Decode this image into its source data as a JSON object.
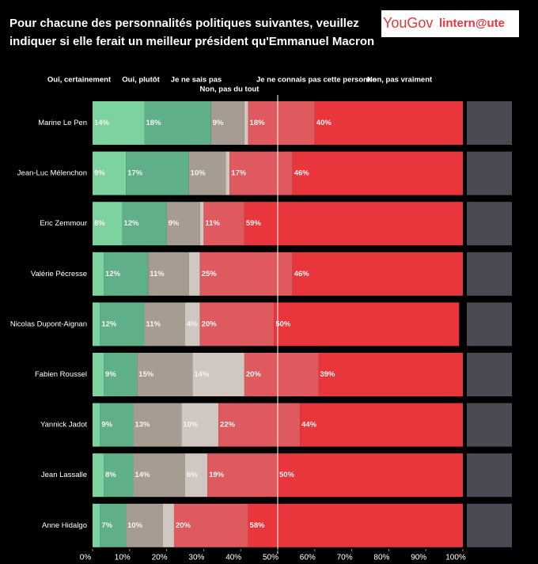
{
  "logos": [
    "YouGov",
    "lintern@ute"
  ],
  "chart_data": {
    "type": "stacked-bar-horizontal",
    "title": "Pour chacune des personnalités politiques suivantes, veuillez indiquer si elle ferait un meilleur président qu'Emmanuel Macron",
    "categories": [
      "Marine Le Pen",
      "Jean-Luc Mélenchon",
      "Eric Zemmour",
      "Valérie Pécresse",
      "Nicolas Dupont-Aignan",
      "Fabien Roussel",
      "Yannick Jadot",
      "Jean Lassalle",
      "Anne Hidalgo"
    ],
    "series": [
      {
        "name": "Oui, certainement",
        "color": "#7dd3a0",
        "values": [
          14,
          9,
          8,
          3,
          2,
          3,
          2,
          3,
          2
        ],
        "value_labels": [
          "14%",
          "9%",
          "8%",
          null,
          null,
          null,
          null,
          null,
          null
        ]
      },
      {
        "name": "Oui, plutôt",
        "color": "#5fb088",
        "values": [
          18,
          17,
          12,
          12,
          12,
          9,
          9,
          8,
          7
        ],
        "value_labels": [
          "18%",
          "17%",
          "12%",
          "12%",
          "12%",
          "9%",
          "9%",
          "8%",
          "7%"
        ]
      },
      {
        "name": "Je ne sais pas",
        "color": "#a69c92",
        "values": [
          9,
          10,
          9,
          11,
          11,
          15,
          13,
          14,
          10
        ],
        "value_labels": [
          "9%",
          "10%",
          "9%",
          "11%",
          "11%",
          "15%",
          "13%",
          "14%",
          "10%"
        ]
      },
      {
        "name": "Je ne connais pas cette personne",
        "color": "#cfc7c0",
        "values": [
          1,
          1,
          1,
          3,
          4,
          14,
          10,
          6,
          3
        ],
        "value_labels": [
          null,
          null,
          null,
          null,
          "4%",
          "14%",
          "10%",
          "6%",
          null
        ]
      },
      {
        "name": "Non, pas vraiment",
        "color": "#df5a5f",
        "values": [
          18,
          17,
          11,
          25,
          20,
          20,
          22,
          19,
          20
        ],
        "value_labels": [
          "18%",
          "17%",
          "11%",
          "25%",
          "20%",
          "20%",
          "22%",
          "19%",
          "20%"
        ]
      },
      {
        "name": "Non, pas du tout",
        "color": "#e8363c",
        "values": [
          40,
          46,
          59,
          46,
          50,
          39,
          44,
          50,
          58
        ],
        "value_labels": [
          "40%",
          "46%",
          "59%",
          "46%",
          "50%",
          "39%",
          "44%",
          "50%",
          "58%"
        ]
      }
    ],
    "xlim": [
      0,
      100
    ],
    "xticks": [
      {
        "value": 0,
        "label": "0%"
      },
      {
        "value": 10,
        "label": "10%"
      },
      {
        "value": 20,
        "label": "20%"
      },
      {
        "value": 30,
        "label": "30%"
      },
      {
        "value": 40,
        "label": "40%"
      },
      {
        "value": 50,
        "label": "50%"
      },
      {
        "value": 60,
        "label": "60%"
      },
      {
        "value": 70,
        "label": "70%"
      },
      {
        "value": 80,
        "label": "80%"
      },
      {
        "value": 90,
        "label": "90%"
      },
      {
        "value": 100,
        "label": "100%"
      }
    ],
    "reference_line": 50
  }
}
